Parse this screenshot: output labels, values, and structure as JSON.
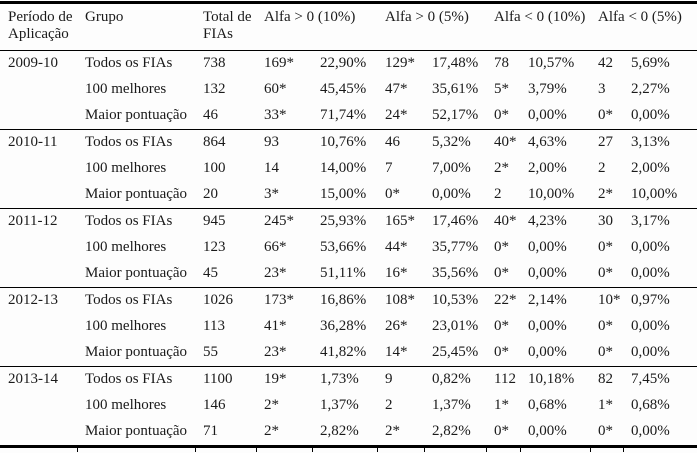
{
  "colors": {
    "text": "#1a1a1a",
    "rule": "#000000",
    "background": "#fdfdfd"
  },
  "table": {
    "headers": {
      "period": "Período de Aplicação",
      "group": "Grupo",
      "total": "Total de FIAs",
      "alpha_cols": [
        "Alfa > 0 (10%)",
        "Alfa > 0 (5%)",
        "Alfa < 0 (10%)",
        "Alfa < 0 (5%)"
      ]
    },
    "blocks": [
      {
        "period": "2009-10",
        "rows": [
          {
            "group": "Todos os FIAs",
            "total": "738",
            "cells": [
              "169*",
              "22,90%",
              "129*",
              "17,48%",
              "78",
              "10,57%",
              "42",
              "5,69%"
            ]
          },
          {
            "group": "100 melhores",
            "total": "132",
            "cells": [
              "60*",
              "45,45%",
              "47*",
              "35,61%",
              "5*",
              "3,79%",
              "3",
              "2,27%"
            ]
          },
          {
            "group": "Maior pontuação",
            "total": "46",
            "cells": [
              "33*",
              "71,74%",
              "24*",
              "52,17%",
              "0*",
              "0,00%",
              "0*",
              "0,00%"
            ]
          }
        ]
      },
      {
        "period": "2010-11",
        "rows": [
          {
            "group": "Todos os FIAs",
            "total": "864",
            "cells": [
              "93",
              "10,76%",
              "46",
              "5,32%",
              "40*",
              "4,63%",
              "27",
              "3,13%"
            ]
          },
          {
            "group": "100 melhores",
            "total": "100",
            "cells": [
              "14",
              "14,00%",
              "7",
              "7,00%",
              "2*",
              "2,00%",
              "2",
              "2,00%"
            ]
          },
          {
            "group": "Maior pontuação",
            "total": "20",
            "cells": [
              "3*",
              "15,00%",
              "0*",
              "0,00%",
              "2",
              "10,00%",
              "2*",
              "10,00%"
            ]
          }
        ]
      },
      {
        "period": "2011-12",
        "rows": [
          {
            "group": "Todos os FIAs",
            "total": "945",
            "cells": [
              "245*",
              "25,93%",
              "165*",
              "17,46%",
              "40*",
              "4,23%",
              "30",
              "3,17%"
            ]
          },
          {
            "group": "100 melhores",
            "total": "123",
            "cells": [
              "66*",
              "53,66%",
              "44*",
              "35,77%",
              "0*",
              "0,00%",
              "0*",
              "0,00%"
            ]
          },
          {
            "group": "Maior pontuação",
            "total": "45",
            "cells": [
              "23*",
              "51,11%",
              "16*",
              "35,56%",
              "0*",
              "0,00%",
              "0*",
              "0,00%"
            ]
          }
        ]
      },
      {
        "period": "2012-13",
        "rows": [
          {
            "group": "Todos os FIAs",
            "total": "1026",
            "cells": [
              "173*",
              "16,86%",
              "108*",
              "10,53%",
              "22*",
              "2,14%",
              "10*",
              "0,97%"
            ]
          },
          {
            "group": "100 melhores",
            "total": "113",
            "cells": [
              "41*",
              "36,28%",
              "26*",
              "23,01%",
              "0*",
              "0,00%",
              "0*",
              "0,00%"
            ]
          },
          {
            "group": "Maior pontuação",
            "total": "55",
            "cells": [
              "23*",
              "41,82%",
              "14*",
              "25,45%",
              "0*",
              "0,00%",
              "0*",
              "0,00%"
            ]
          }
        ]
      },
      {
        "period": "2013-14",
        "rows": [
          {
            "group": "Todos os FIAs",
            "total": "1100",
            "cells": [
              "19*",
              "1,73%",
              "9",
              "0,82%",
              "112",
              "10,18%",
              "82",
              "7,45%"
            ]
          },
          {
            "group": "100 melhores",
            "total": "146",
            "cells": [
              "2*",
              "1,37%",
              "2",
              "1,37%",
              "1*",
              "0,68%",
              "1*",
              "0,68%"
            ]
          },
          {
            "group": "Maior pontuação",
            "total": "71",
            "cells": [
              "2*",
              "2,82%",
              "2*",
              "2,82%",
              "0*",
              "0,00%",
              "0*",
              "0,00%"
            ]
          }
        ]
      }
    ]
  }
}
